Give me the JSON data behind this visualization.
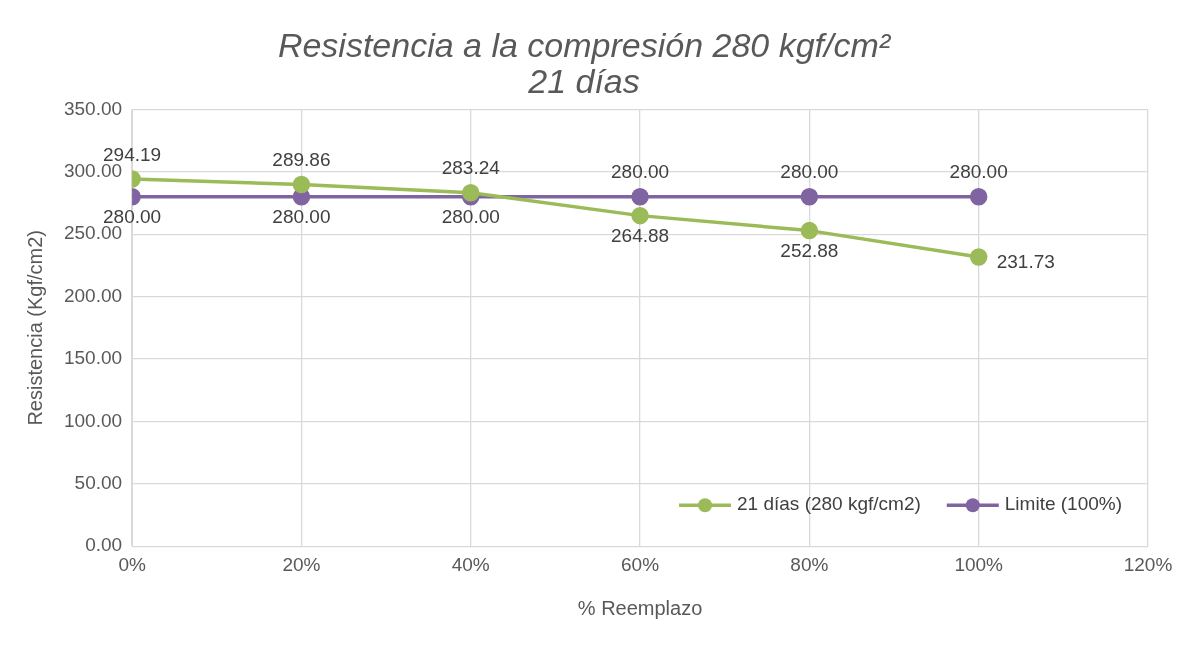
{
  "chart_data": {
    "type": "line",
    "title": "Resistencia a la compresión 280 kgf/cm²",
    "subtitle": "21 días",
    "xlabel": "% Reemplazo",
    "ylabel": "Resistencia (Kgf/cm2)",
    "x": [
      0,
      20,
      40,
      60,
      80,
      100
    ],
    "xlim": [
      0,
      120
    ],
    "xticks": [
      {
        "value": 0,
        "label": "0%"
      },
      {
        "value": 20,
        "label": "20%"
      },
      {
        "value": 40,
        "label": "40%"
      },
      {
        "value": 60,
        "label": "60%"
      },
      {
        "value": 80,
        "label": "80%"
      },
      {
        "value": 100,
        "label": "100%"
      },
      {
        "value": 120,
        "label": "120%"
      }
    ],
    "ylim": [
      0,
      350
    ],
    "yticks": [
      {
        "value": 0,
        "label": "0.00"
      },
      {
        "value": 50,
        "label": "50.00"
      },
      {
        "value": 100,
        "label": "100.00"
      },
      {
        "value": 150,
        "label": "150.00"
      },
      {
        "value": 200,
        "label": "200.00"
      },
      {
        "value": 250,
        "label": "250.00"
      },
      {
        "value": 300,
        "label": "300.00"
      },
      {
        "value": 350,
        "label": "350.00"
      }
    ],
    "series": [
      {
        "name": "21 días (280 kgf/cm2)",
        "color": "#9bbb59",
        "values": [
          294.19,
          289.86,
          283.24,
          264.88,
          252.88,
          231.73
        ],
        "value_labels": [
          "294.19",
          "289.86",
          "283.24",
          "264.88",
          "252.88",
          "231.73"
        ]
      },
      {
        "name": "Limite (100%)",
        "color": "#8064a2",
        "values": [
          280,
          280,
          280,
          280,
          280,
          280
        ],
        "value_labels": [
          "280.00",
          "280.00",
          "280.00",
          "280.00",
          "280.00",
          "280.00"
        ]
      }
    ],
    "grid": true,
    "legend": "bottom right",
    "marker": "circle",
    "line_style": "solid"
  }
}
